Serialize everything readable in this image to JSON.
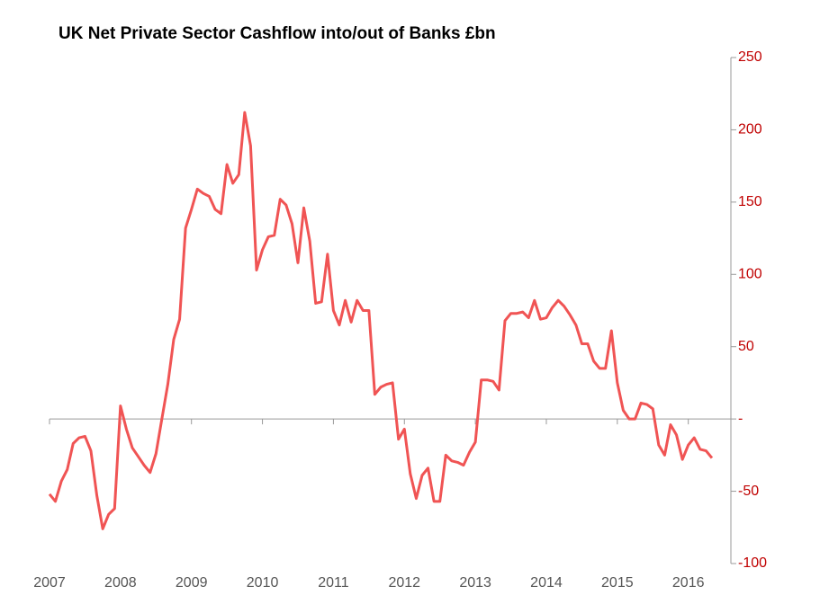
{
  "chart_data": {
    "type": "line",
    "title": "UK Net Private Sector Cashflow into/out  of Banks £bn",
    "x": [
      2007,
      2007.083,
      2007.167,
      2007.25,
      2007.333,
      2007.417,
      2007.5,
      2007.583,
      2007.667,
      2007.75,
      2007.833,
      2007.917,
      2008,
      2008.083,
      2008.167,
      2008.25,
      2008.333,
      2008.417,
      2008.5,
      2008.583,
      2008.667,
      2008.75,
      2008.833,
      2008.917,
      2009,
      2009.083,
      2009.167,
      2009.25,
      2009.333,
      2009.417,
      2009.5,
      2009.583,
      2009.667,
      2009.75,
      2009.833,
      2009.917,
      2010,
      2010.083,
      2010.167,
      2010.25,
      2010.333,
      2010.417,
      2010.5,
      2010.583,
      2010.667,
      2010.75,
      2010.833,
      2010.917,
      2011,
      2011.083,
      2011.167,
      2011.25,
      2011.333,
      2011.417,
      2011.5,
      2011.583,
      2011.667,
      2011.75,
      2011.833,
      2011.917,
      2012,
      2012.083,
      2012.167,
      2012.25,
      2012.333,
      2012.417,
      2012.5,
      2012.583,
      2012.667,
      2012.75,
      2012.833,
      2012.917,
      2013,
      2013.083,
      2013.167,
      2013.25,
      2013.333,
      2013.417,
      2013.5,
      2013.583,
      2013.667,
      2013.75,
      2013.833,
      2013.917,
      2014,
      2014.083,
      2014.167,
      2014.25,
      2014.333,
      2014.417,
      2014.5,
      2014.583,
      2014.667,
      2014.75,
      2014.833,
      2014.917,
      2015,
      2015.083,
      2015.167,
      2015.25,
      2015.333,
      2015.417,
      2015.5,
      2015.583,
      2015.667,
      2015.75,
      2015.833,
      2015.917,
      2016,
      2016.083,
      2016.167,
      2016.25,
      2016.333
    ],
    "series": [
      {
        "name": "UK Net Private Sector Cashflow",
        "color": "#f05454",
        "values": [
          -52,
          -57,
          -43,
          -35,
          -17,
          -13,
          -12,
          -22,
          -53,
          -76,
          -66,
          -62,
          9,
          -7,
          -20,
          -26,
          -32,
          -37,
          -24,
          0,
          24,
          55,
          69,
          132,
          145,
          159,
          156,
          154,
          145,
          142,
          176,
          163,
          169,
          212,
          189,
          103,
          117,
          126,
          127,
          152,
          148,
          135,
          108,
          146,
          123,
          80,
          81,
          114,
          75,
          65,
          82,
          67,
          82,
          75,
          75,
          17,
          22,
          24,
          25,
          -14,
          -7,
          -38,
          -55,
          -39,
          -34,
          -57,
          -57,
          -25,
          -29,
          -30,
          -32,
          -23,
          -16,
          27,
          27,
          26,
          20,
          68,
          73,
          73,
          74,
          70,
          82,
          69,
          70,
          77,
          82,
          78,
          72,
          65,
          52,
          52,
          40,
          35,
          35,
          61,
          25,
          6,
          0,
          0,
          11,
          10,
          7,
          -18,
          -25,
          -4,
          -11,
          -28,
          -18,
          -13,
          -21,
          -22,
          -27
        ]
      }
    ],
    "xlim": [
      2007,
      2016.6
    ],
    "xticks": [
      2007,
      2008,
      2009,
      2010,
      2011,
      2012,
      2013,
      2014,
      2015,
      2016
    ],
    "ylim": [
      -100,
      250
    ],
    "yticks": [
      -100,
      -50,
      {
        "value": 0,
        "label": "-"
      },
      50,
      100,
      150,
      200,
      250
    ],
    "axis_color": "#c00000"
  }
}
